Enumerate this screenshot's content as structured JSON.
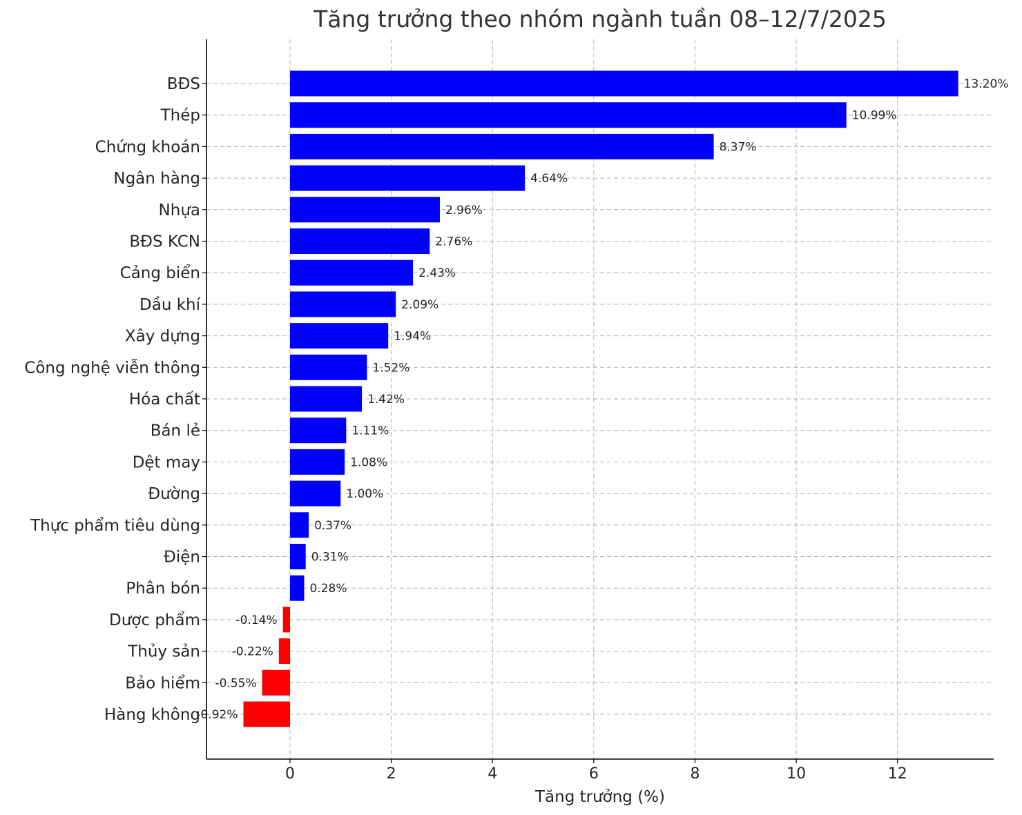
{
  "chart_data": {
    "type": "bar",
    "orientation": "horizontal",
    "title": "Tăng trưởng theo nhóm ngành tuần 08–12/7/2025",
    "xlabel": "Tăng trưởng (%)",
    "ylabel": "",
    "xlim": [
      -1.65,
      13.9
    ],
    "xticks": [
      0,
      2,
      4,
      6,
      8,
      10,
      12
    ],
    "grid": true,
    "colors": {
      "positive": "#0000ff",
      "negative": "#ff0000"
    },
    "categories": [
      "BĐS",
      "Thép",
      "Chứng khoán",
      "Ngân hàng",
      "Nhựa",
      "BĐS KCN",
      "Cảng biển",
      "Dầu khí",
      "Xây dựng",
      "Công nghệ viễn thông",
      "Hóa chất",
      "Bán lẻ",
      "Dệt may",
      "Đường",
      "Thực phẩm tiêu dùng",
      "Điện",
      "Phân bón",
      "Dược phẩm",
      "Thủy sản",
      "Bảo hiểm",
      "Hàng không"
    ],
    "values": [
      13.2,
      10.99,
      8.37,
      4.64,
      2.96,
      2.76,
      2.43,
      2.09,
      1.94,
      1.52,
      1.42,
      1.11,
      1.08,
      1.0,
      0.37,
      0.31,
      0.28,
      -0.14,
      -0.22,
      -0.55,
      -0.92
    ],
    "value_labels": [
      "13.20%",
      "10.99%",
      "8.37%",
      "4.64%",
      "2.96%",
      "2.76%",
      "2.43%",
      "2.09%",
      "1.94%",
      "1.52%",
      "1.42%",
      "1.11%",
      "1.08%",
      "1.00%",
      "0.37%",
      "0.31%",
      "0.28%",
      "-0.14%",
      "-0.22%",
      "-0.55%",
      "-0.92%"
    ]
  }
}
